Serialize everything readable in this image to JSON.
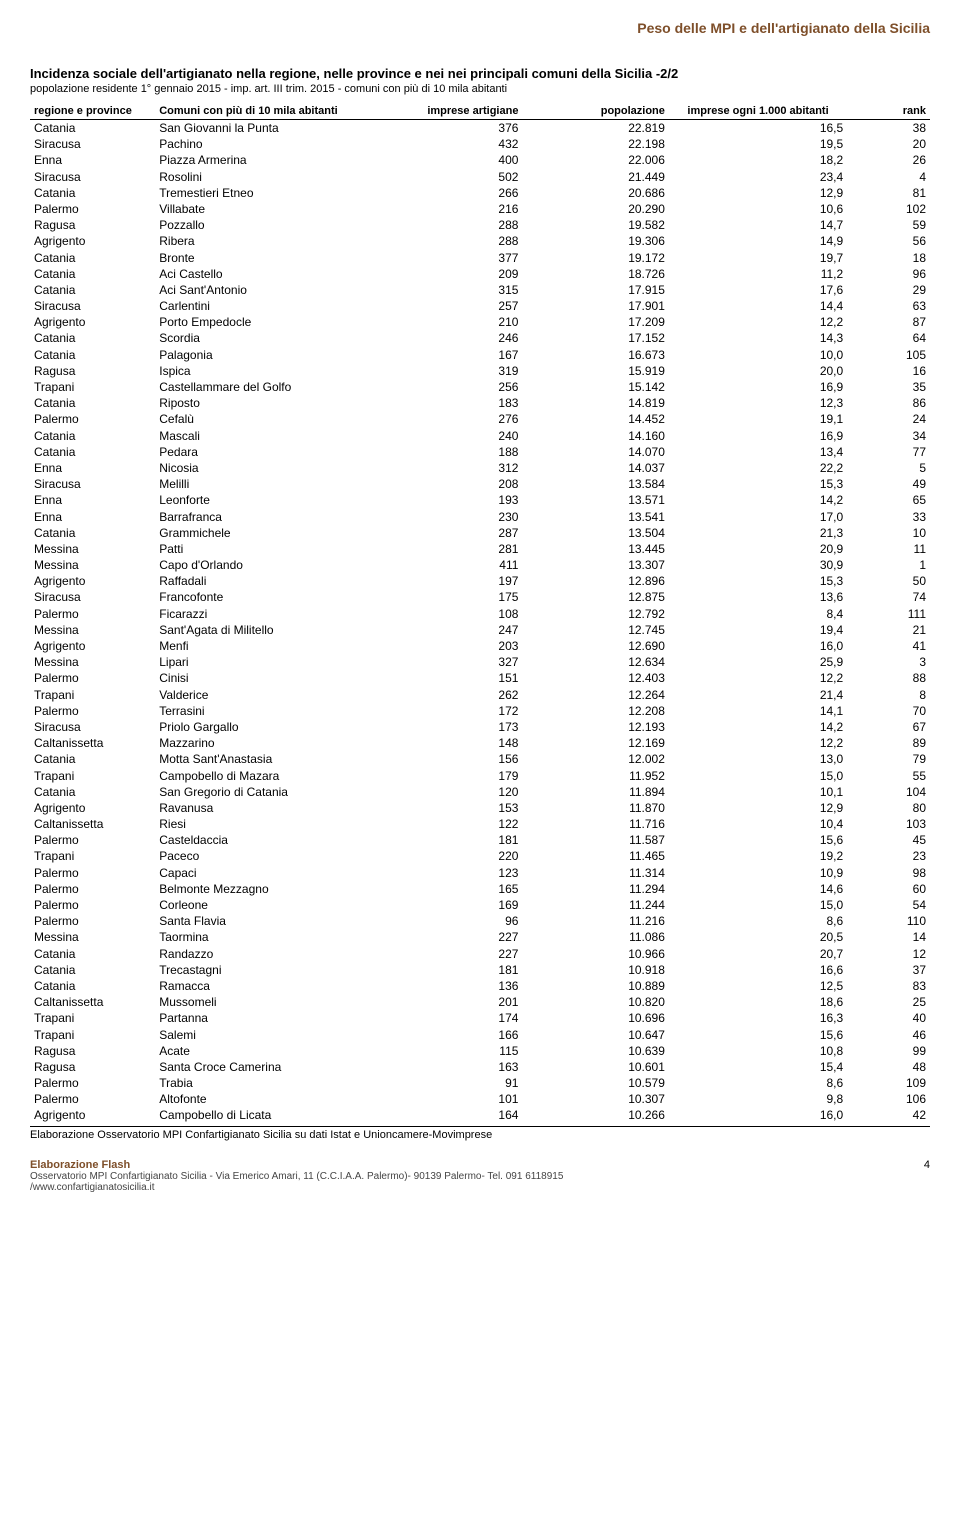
{
  "page_title": "Peso delle MPI e dell'artigianato della Sicilia",
  "table": {
    "title": "Incidenza sociale dell'artigianato nella regione, nelle province e nei nei principali comuni della Sicilia -2/2",
    "subtitle": "popolazione residente 1° gennaio 2015 - imp. art. III trim. 2015 - comuni con più di 10 mila abitanti",
    "headers": {
      "regione": "regione e province",
      "comuni": "Comuni con più di 10 mila abitanti",
      "imprese_artigiane": "imprese artigiane",
      "popolazione": "popolazione",
      "imprese_ogni": "imprese ogni 1.000 abitanti",
      "rank": "rank"
    },
    "footnote": "Elaborazione Osservatorio MPI Confartigianato Sicilia su dati Istat e Unioncamere-Movimprese",
    "rows": [
      [
        "Catania",
        "San Giovanni la Punta",
        "376",
        "22.819",
        "16,5",
        "38"
      ],
      [
        "Siracusa",
        "Pachino",
        "432",
        "22.198",
        "19,5",
        "20"
      ],
      [
        "Enna",
        "Piazza Armerina",
        "400",
        "22.006",
        "18,2",
        "26"
      ],
      [
        "Siracusa",
        "Rosolini",
        "502",
        "21.449",
        "23,4",
        "4"
      ],
      [
        "Catania",
        "Tremestieri Etneo",
        "266",
        "20.686",
        "12,9",
        "81"
      ],
      [
        "Palermo",
        "Villabate",
        "216",
        "20.290",
        "10,6",
        "102"
      ],
      [
        "Ragusa",
        "Pozzallo",
        "288",
        "19.582",
        "14,7",
        "59"
      ],
      [
        "Agrigento",
        "Ribera",
        "288",
        "19.306",
        "14,9",
        "56"
      ],
      [
        "Catania",
        "Bronte",
        "377",
        "19.172",
        "19,7",
        "18"
      ],
      [
        "Catania",
        "Aci Castello",
        "209",
        "18.726",
        "11,2",
        "96"
      ],
      [
        "Catania",
        "Aci Sant'Antonio",
        "315",
        "17.915",
        "17,6",
        "29"
      ],
      [
        "Siracusa",
        "Carlentini",
        "257",
        "17.901",
        "14,4",
        "63"
      ],
      [
        "Agrigento",
        "Porto Empedocle",
        "210",
        "17.209",
        "12,2",
        "87"
      ],
      [
        "Catania",
        "Scordia",
        "246",
        "17.152",
        "14,3",
        "64"
      ],
      [
        "Catania",
        "Palagonia",
        "167",
        "16.673",
        "10,0",
        "105"
      ],
      [
        "Ragusa",
        "Ispica",
        "319",
        "15.919",
        "20,0",
        "16"
      ],
      [
        "Trapani",
        "Castellammare del Golfo",
        "256",
        "15.142",
        "16,9",
        "35"
      ],
      [
        "Catania",
        "Riposto",
        "183",
        "14.819",
        "12,3",
        "86"
      ],
      [
        "Palermo",
        "Cefalù",
        "276",
        "14.452",
        "19,1",
        "24"
      ],
      [
        "Catania",
        "Mascali",
        "240",
        "14.160",
        "16,9",
        "34"
      ],
      [
        "Catania",
        "Pedara",
        "188",
        "14.070",
        "13,4",
        "77"
      ],
      [
        "Enna",
        "Nicosia",
        "312",
        "14.037",
        "22,2",
        "5"
      ],
      [
        "Siracusa",
        "Melilli",
        "208",
        "13.584",
        "15,3",
        "49"
      ],
      [
        "Enna",
        "Leonforte",
        "193",
        "13.571",
        "14,2",
        "65"
      ],
      [
        "Enna",
        "Barrafranca",
        "230",
        "13.541",
        "17,0",
        "33"
      ],
      [
        "Catania",
        "Grammichele",
        "287",
        "13.504",
        "21,3",
        "10"
      ],
      [
        "Messina",
        "Patti",
        "281",
        "13.445",
        "20,9",
        "11"
      ],
      [
        "Messina",
        "Capo d'Orlando",
        "411",
        "13.307",
        "30,9",
        "1"
      ],
      [
        "Agrigento",
        "Raffadali",
        "197",
        "12.896",
        "15,3",
        "50"
      ],
      [
        "Siracusa",
        "Francofonte",
        "175",
        "12.875",
        "13,6",
        "74"
      ],
      [
        "Palermo",
        "Ficarazzi",
        "108",
        "12.792",
        "8,4",
        "111"
      ],
      [
        "Messina",
        "Sant'Agata di Militello",
        "247",
        "12.745",
        "19,4",
        "21"
      ],
      [
        "Agrigento",
        "Menfi",
        "203",
        "12.690",
        "16,0",
        "41"
      ],
      [
        "Messina",
        "Lipari",
        "327",
        "12.634",
        "25,9",
        "3"
      ],
      [
        "Palermo",
        "Cinisi",
        "151",
        "12.403",
        "12,2",
        "88"
      ],
      [
        "Trapani",
        "Valderice",
        "262",
        "12.264",
        "21,4",
        "8"
      ],
      [
        "Palermo",
        "Terrasini",
        "172",
        "12.208",
        "14,1",
        "70"
      ],
      [
        "Siracusa",
        "Priolo Gargallo",
        "173",
        "12.193",
        "14,2",
        "67"
      ],
      [
        "Caltanissetta",
        "Mazzarino",
        "148",
        "12.169",
        "12,2",
        "89"
      ],
      [
        "Catania",
        "Motta Sant'Anastasia",
        "156",
        "12.002",
        "13,0",
        "79"
      ],
      [
        "Trapani",
        "Campobello di Mazara",
        "179",
        "11.952",
        "15,0",
        "55"
      ],
      [
        "Catania",
        "San Gregorio di Catania",
        "120",
        "11.894",
        "10,1",
        "104"
      ],
      [
        "Agrigento",
        "Ravanusa",
        "153",
        "11.870",
        "12,9",
        "80"
      ],
      [
        "Caltanissetta",
        "Riesi",
        "122",
        "11.716",
        "10,4",
        "103"
      ],
      [
        "Palermo",
        "Casteldaccia",
        "181",
        "11.587",
        "15,6",
        "45"
      ],
      [
        "Trapani",
        "Paceco",
        "220",
        "11.465",
        "19,2",
        "23"
      ],
      [
        "Palermo",
        "Capaci",
        "123",
        "11.314",
        "10,9",
        "98"
      ],
      [
        "Palermo",
        "Belmonte Mezzagno",
        "165",
        "11.294",
        "14,6",
        "60"
      ],
      [
        "Palermo",
        "Corleone",
        "169",
        "11.244",
        "15,0",
        "54"
      ],
      [
        "Palermo",
        "Santa Flavia",
        "96",
        "11.216",
        "8,6",
        "110"
      ],
      [
        "Messina",
        "Taormina",
        "227",
        "11.086",
        "20,5",
        "14"
      ],
      [
        "Catania",
        "Randazzo",
        "227",
        "10.966",
        "20,7",
        "12"
      ],
      [
        "Catania",
        "Trecastagni",
        "181",
        "10.918",
        "16,6",
        "37"
      ],
      [
        "Catania",
        "Ramacca",
        "136",
        "10.889",
        "12,5",
        "83"
      ],
      [
        "Caltanissetta",
        "Mussomeli",
        "201",
        "10.820",
        "18,6",
        "25"
      ],
      [
        "Trapani",
        "Partanna",
        "174",
        "10.696",
        "16,3",
        "40"
      ],
      [
        "Trapani",
        "Salemi",
        "166",
        "10.647",
        "15,6",
        "46"
      ],
      [
        "Ragusa",
        "Acate",
        "115",
        "10.639",
        "10,8",
        "99"
      ],
      [
        "Ragusa",
        "Santa Croce Camerina",
        "163",
        "10.601",
        "15,4",
        "48"
      ],
      [
        "Palermo",
        "Trabia",
        "91",
        "10.579",
        "8,6",
        "109"
      ],
      [
        "Palermo",
        "Altofonte",
        "101",
        "10.307",
        "9,8",
        "106"
      ],
      [
        "Agrigento",
        "Campobello di Licata",
        "164",
        "10.266",
        "16,0",
        "42"
      ]
    ]
  },
  "footer": {
    "elab": "Elaborazione Flash",
    "line1": "Osservatorio MPI Confartigianato Sicilia - Via Emerico Amari, 11 (C.C.I.A.A. Palermo)- 90139 Palermo- Tel. 091 6118915",
    "line2": "/www.confartigianatosicilia.it",
    "pagenum": "4"
  }
}
